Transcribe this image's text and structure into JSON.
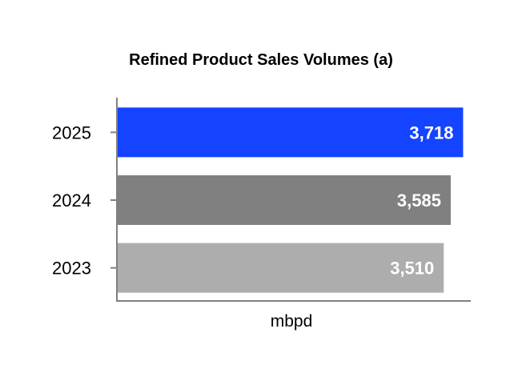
{
  "chart_data": {
    "type": "bar",
    "orientation": "horizontal",
    "title": "Refined Product Sales Volumes (a)",
    "xlabel": "mbpd",
    "ylabel": "",
    "categories": [
      "2025",
      "2024",
      "2023"
    ],
    "values": [
      3718,
      3585,
      3510
    ],
    "value_labels": [
      "3,718",
      "3,585",
      "3,510"
    ],
    "colors": [
      "#1444ff",
      "#808080",
      "#adadad"
    ],
    "xlim": [
      0,
      3800
    ],
    "grid": false,
    "legend": "none"
  }
}
